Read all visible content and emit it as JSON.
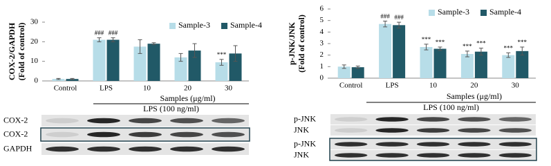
{
  "chart_data": [
    {
      "type": "bar",
      "ylabel": [
        "COX-2/GAPDH",
        "(Fold of control)"
      ],
      "categories": [
        "Control",
        "LPS",
        "10",
        "20",
        "30"
      ],
      "xlabel": "Samples (μg/ml)",
      "treatment": "LPS (100 ng/ml)",
      "ylim": [
        0,
        30
      ],
      "yticks": [
        0,
        10,
        20,
        30
      ],
      "series": [
        {
          "name": "Sample-3",
          "color": "#b7dde8",
          "values": [
            1,
            21,
            17.5,
            12,
            9.5
          ],
          "errors": [
            0.3,
            1,
            3.5,
            2,
            1.5
          ],
          "marks": [
            null,
            "###",
            null,
            null,
            "***"
          ]
        },
        {
          "name": "Sample-4",
          "color": "#215967",
          "values": [
            1,
            21,
            19,
            15.5,
            14
          ],
          "errors": [
            0.3,
            1,
            0.5,
            3.5,
            4
          ],
          "marks": [
            null,
            "###",
            null,
            null,
            null
          ]
        }
      ],
      "blot_labels": [
        "COX-2",
        "COX-2",
        "GAPDH"
      ]
    },
    {
      "type": "bar",
      "ylabel": [
        "p-JNK/JNK",
        "(Fold of control)"
      ],
      "categories": [
        "Control",
        "LPS",
        "10",
        "20",
        "30"
      ],
      "xlabel": "Samples (μg/ml)",
      "treatment": "LPS (100 ng/ml)",
      "ylim": [
        0,
        6
      ],
      "yticks": [
        0,
        1,
        2,
        3,
        4,
        5,
        6
      ],
      "series": [
        {
          "name": "Sample-3",
          "color": "#b7dde8",
          "values": [
            1,
            4.7,
            2.7,
            2.1,
            2.0
          ],
          "errors": [
            0.15,
            0.25,
            0.25,
            0.25,
            0.2
          ],
          "marks": [
            null,
            "###",
            "***",
            "***",
            "***"
          ]
        },
        {
          "name": "Sample-4",
          "color": "#215967",
          "values": [
            0.95,
            4.6,
            2.55,
            2.3,
            2.35
          ],
          "errors": [
            0.1,
            0.25,
            0.15,
            0.3,
            0.35
          ],
          "marks": [
            null,
            "###",
            "***",
            "***",
            "***"
          ]
        }
      ],
      "blot_labels": [
        "p-JNK",
        "JNK",
        "p-JNK",
        "JNK"
      ]
    }
  ]
}
